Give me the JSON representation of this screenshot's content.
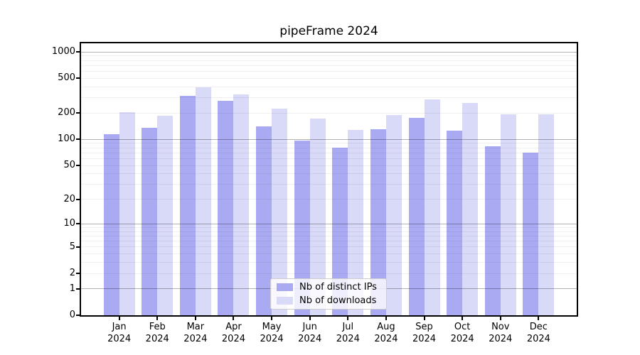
{
  "figure": {
    "title": "pipeFrame 2024"
  },
  "chart_data": {
    "type": "bar",
    "title": "pipeFrame 2024",
    "categories": [
      "Jan 2024",
      "Feb 2024",
      "Mar 2024",
      "Apr 2024",
      "May 2024",
      "Jun 2024",
      "Jul 2024",
      "Aug 2024",
      "Sep 2024",
      "Oct 2024",
      "Nov 2024",
      "Dec 2024"
    ],
    "series": [
      {
        "name": "Nb of distinct IPs",
        "color": "#aaaaf3",
        "values": [
          115,
          136,
          315,
          278,
          142,
          97,
          80,
          131,
          177,
          126,
          83,
          71
        ]
      },
      {
        "name": "Nb of downloads",
        "color": "#d9d9f8",
        "values": [
          205,
          186,
          395,
          330,
          225,
          172,
          128,
          190,
          290,
          262,
          195,
          195
        ]
      }
    ],
    "xlabel": "",
    "ylabel": "",
    "yscale": "log(value+1)",
    "y_ticks": [
      0,
      1,
      2,
      5,
      10,
      20,
      50,
      100,
      200,
      500,
      1000
    ],
    "y_major_gridlines": [
      1,
      10,
      100,
      1000
    ],
    "y_minor_gridlines": [
      2,
      3,
      4,
      5,
      6,
      7,
      8,
      9,
      20,
      30,
      40,
      50,
      60,
      70,
      80,
      90,
      200,
      300,
      400,
      500,
      600,
      700,
      800,
      900
    ],
    "ylim": [
      0,
      1200
    ],
    "grid": true,
    "legend_position": "lower center"
  },
  "colors": {
    "bar_ips": "#aaaaf3",
    "bar_downloads": "#d9d9f8",
    "major_grid": "rgba(0,0,0,0.30)",
    "minor_grid": "rgba(0,0,0,0.06)",
    "spine": "#000000",
    "background": "#ffffff"
  }
}
